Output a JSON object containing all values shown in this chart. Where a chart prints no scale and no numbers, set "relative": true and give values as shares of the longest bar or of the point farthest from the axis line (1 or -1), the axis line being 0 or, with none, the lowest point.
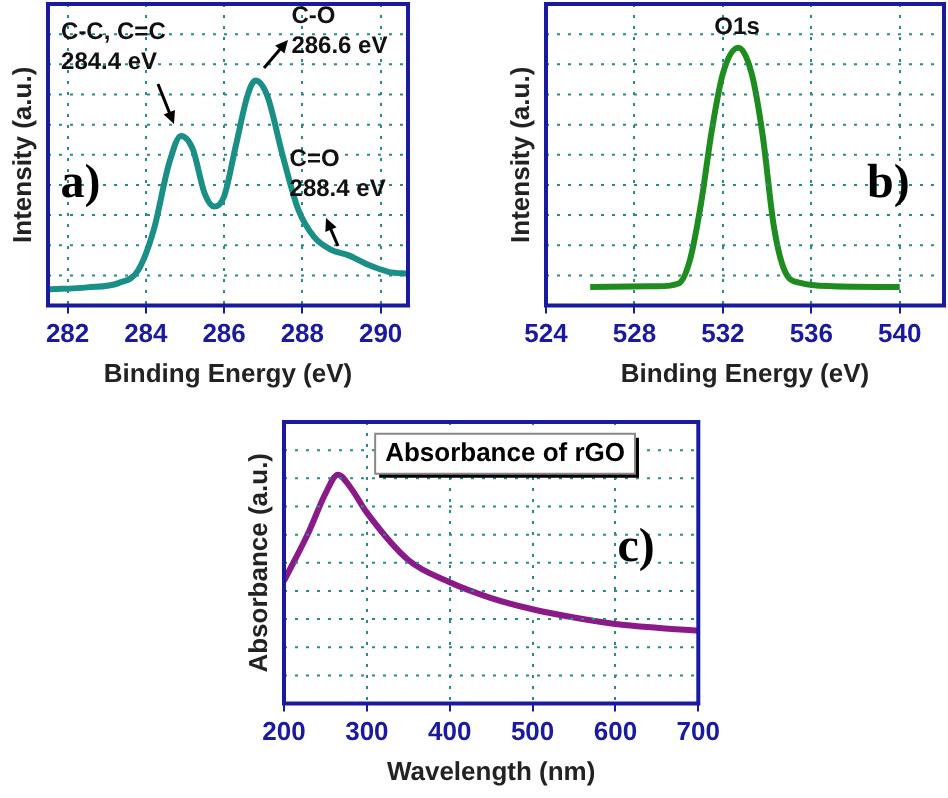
{
  "chart_data": [
    {
      "type": "line",
      "relative": true,
      "xlabel": "Binding Energy (eV)",
      "ylabel": "Intensity (a.u.)",
      "xlim": [
        281.5,
        290.7
      ],
      "xticks": [
        282,
        284,
        286,
        288,
        290
      ],
      "grid": true,
      "marker": "none",
      "line_style": "solid",
      "x": [
        281.5,
        282.5,
        283.3,
        283.8,
        284.2,
        284.6,
        284.9,
        285.2,
        285.5,
        285.75,
        286.0,
        286.3,
        286.6,
        286.8,
        287.1,
        287.5,
        287.9,
        288.3,
        288.7,
        289.2,
        289.7,
        290.2,
        290.7
      ],
      "series": [
        {
          "color": "#1a8f86",
          "values": [
            0.072,
            0.081,
            0.1,
            0.156,
            0.335,
            0.635,
            0.754,
            0.695,
            0.5,
            0.44,
            0.485,
            0.71,
            0.934,
            1,
            0.934,
            0.665,
            0.425,
            0.305,
            0.251,
            0.222,
            0.18,
            0.15,
            0.141
          ]
        }
      ],
      "annotations": [
        {
          "text": "C-C, C=C\n284.4 eV",
          "x": 284.9,
          "y": 0.754
        },
        {
          "text": "C-O\n286.6 eV",
          "x": 286.8,
          "y": 1
        },
        {
          "text": "C=O\n288.4 eV",
          "x": 288.9,
          "y": 0.24
        },
        "a)"
      ]
    },
    {
      "type": "line",
      "relative": true,
      "xlabel": "Binding Energy (eV)",
      "ylabel": "Intensity (a.u.)",
      "xlim": [
        524,
        542
      ],
      "xticks": [
        524,
        528,
        532,
        536,
        540
      ],
      "grid": true,
      "marker": "none",
      "line_style": "solid",
      "x": [
        526,
        529,
        530,
        530.5,
        531,
        531.5,
        532,
        532.7,
        533.3,
        533.8,
        534.3,
        534.8,
        535.5,
        537,
        540
      ],
      "series": [
        {
          "color": "#1e8c1e",
          "values": [
            0.072,
            0.075,
            0.086,
            0.174,
            0.39,
            0.68,
            0.9,
            1,
            0.9,
            0.66,
            0.31,
            0.134,
            0.088,
            0.075,
            0.072
          ]
        }
      ],
      "annotations": [
        {
          "text": "O1s",
          "x": 532.7,
          "y": 1
        },
        "b)"
      ]
    },
    {
      "type": "line",
      "relative": true,
      "xlabel": "Wavelength (nm)",
      "ylabel": "Absorbance (a.u.)",
      "xlim": [
        200,
        700
      ],
      "xticks": [
        200,
        300,
        400,
        500,
        600,
        700
      ],
      "grid": true,
      "marker": "none",
      "line_style": "solid",
      "x": [
        200,
        230,
        250,
        265,
        280,
        300,
        350,
        400,
        450,
        500,
        550,
        600,
        650,
        700
      ],
      "series": [
        {
          "color": "#8a1a8a",
          "values": [
            0.536,
            0.751,
            0.917,
            1,
            0.945,
            0.834,
            0.627,
            0.53,
            0.461,
            0.412,
            0.376,
            0.348,
            0.331,
            0.318
          ]
        }
      ],
      "annotations": [
        "Absorbance of rGO",
        "c)"
      ]
    }
  ]
}
